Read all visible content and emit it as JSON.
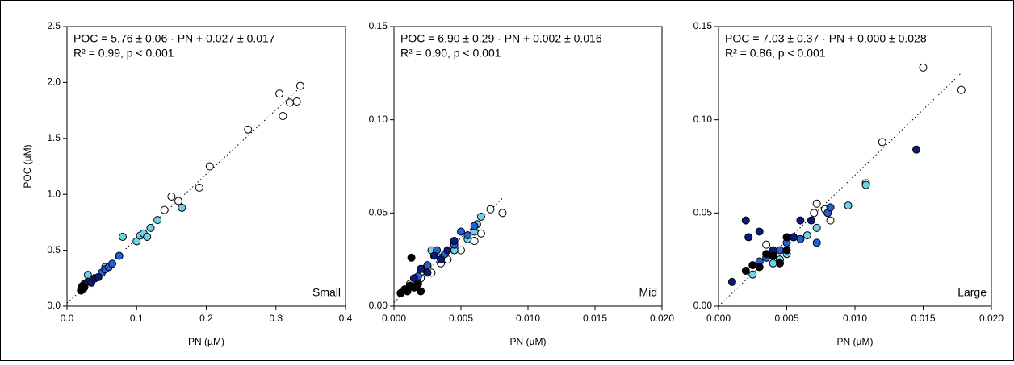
{
  "chart_data": [
    {
      "type": "scatter",
      "xlabel": "PN (µM)",
      "ylabel": "POC (µM)",
      "annotations": {
        "equation": "POC = 5.76 ± 0.06 · PN + 0.027 ± 0.017",
        "r2": "R² = 0.99, p < 0.001",
        "panel": "Small"
      },
      "fit": {
        "slope": 5.76,
        "intercept": 0.027
      },
      "xlim": [
        0,
        0.4
      ],
      "ylim": [
        0,
        2.5
      ],
      "xticks": [
        {
          "value": 0,
          "label": "0.0"
        },
        0.1,
        0.2,
        0.3,
        0.4
      ],
      "yticks": [
        {
          "value": 0,
          "label": "0.0"
        },
        0.5,
        {
          "value": 1,
          "label": "1.0"
        },
        1.5,
        {
          "value": 2,
          "label": "2.0"
        },
        2.5
      ],
      "series": [
        {
          "color": "#000000",
          "x": [
            0.02,
            0.021,
            0.022,
            0.023,
            0.025
          ],
          "values": [
            0.14,
            0.16,
            0.18,
            0.15,
            0.17
          ]
        },
        {
          "color": "#0b1a7a",
          "x": [
            0.025,
            0.03,
            0.035,
            0.04,
            0.045
          ],
          "values": [
            0.2,
            0.22,
            0.21,
            0.25,
            0.26
          ]
        },
        {
          "color": "#2460d8",
          "x": [
            0.04,
            0.05,
            0.055,
            0.06,
            0.065,
            0.075
          ],
          "values": [
            0.25,
            0.3,
            0.33,
            0.35,
            0.38,
            0.45
          ]
        },
        {
          "color": "#6fd3e8",
          "x": [
            0.03,
            0.055,
            0.08,
            0.1,
            0.105,
            0.11,
            0.115,
            0.12,
            0.13,
            0.165
          ],
          "values": [
            0.28,
            0.35,
            0.62,
            0.58,
            0.63,
            0.65,
            0.62,
            0.7,
            0.77,
            0.88
          ]
        },
        {
          "color": "#ffffff",
          "x": [
            0.14,
            0.15,
            0.16,
            0.19,
            0.205,
            0.26,
            0.305,
            0.31,
            0.32,
            0.33,
            0.335
          ],
          "values": [
            0.86,
            0.98,
            0.94,
            1.06,
            1.25,
            1.58,
            1.9,
            1.7,
            1.82,
            1.83,
            1.97
          ]
        }
      ]
    },
    {
      "type": "scatter",
      "xlabel": "PN (µM)",
      "annotations": {
        "equation": "POC = 6.90 ± 0.29 · PN + 0.002 ± 0.016",
        "r2": "R² = 0.90, p < 0.001",
        "panel": "Mid"
      },
      "fit": {
        "slope": 6.9,
        "intercept": 0.002
      },
      "xlim": [
        0,
        0.02
      ],
      "ylim": [
        0,
        0.15
      ],
      "xticks": [
        {
          "value": 0,
          "label": "0.000"
        },
        0.005,
        {
          "value": 0.01,
          "label": "0.010"
        },
        0.015,
        {
          "value": 0.02,
          "label": "0.020"
        }
      ],
      "yticks": [
        {
          "value": 0,
          "label": "0.00"
        },
        0.05,
        {
          "value": 0.1,
          "label": "0.10"
        },
        0.15
      ],
      "series": [
        {
          "color": "#000000",
          "x": [
            0.0005,
            0.0008,
            0.001,
            0.0012,
            0.0015,
            0.0018,
            0.002,
            0.0013
          ],
          "values": [
            0.007,
            0.009,
            0.008,
            0.011,
            0.01,
            0.012,
            0.008,
            0.026
          ]
        },
        {
          "color": "#0b1a7a",
          "x": [
            0.0015,
            0.002,
            0.0025,
            0.003,
            0.0035,
            0.004,
            0.0045
          ],
          "values": [
            0.015,
            0.02,
            0.018,
            0.027,
            0.025,
            0.03,
            0.035
          ]
        },
        {
          "color": "#2460d8",
          "x": [
            0.0018,
            0.0025,
            0.0032,
            0.0038,
            0.0045,
            0.005,
            0.0055,
            0.006
          ],
          "values": [
            0.016,
            0.022,
            0.03,
            0.028,
            0.033,
            0.04,
            0.038,
            0.043
          ]
        },
        {
          "color": "#6fd3e8",
          "x": [
            0.0022,
            0.0028,
            0.0035,
            0.0045,
            0.0055,
            0.006,
            0.0065,
            0.0062
          ],
          "values": [
            0.02,
            0.03,
            0.026,
            0.03,
            0.036,
            0.04,
            0.048,
            0.044
          ]
        },
        {
          "color": "#ffffff",
          "x": [
            0.0012,
            0.002,
            0.0028,
            0.0035,
            0.004,
            0.005,
            0.006,
            0.0065,
            0.0072,
            0.0081
          ],
          "values": [
            0.012,
            0.015,
            0.018,
            0.023,
            0.025,
            0.03,
            0.035,
            0.039,
            0.052,
            0.05
          ]
        }
      ]
    },
    {
      "type": "scatter",
      "xlabel": "PN (µM)",
      "annotations": {
        "equation": "POC = 7.03 ± 0.37 · PN + 0.000 ± 0.028",
        "r2": "R² = 0.86, p < 0.001",
        "panel": "Large"
      },
      "fit": {
        "slope": 7.03,
        "intercept": 0
      },
      "xlim": [
        0,
        0.02
      ],
      "ylim": [
        0,
        0.15
      ],
      "xticks": [
        {
          "value": 0,
          "label": "0.000"
        },
        0.005,
        {
          "value": 0.01,
          "label": "0.010"
        },
        0.015,
        {
          "value": 0.02,
          "label": "0.020"
        }
      ],
      "yticks": [
        {
          "value": 0,
          "label": "0.00"
        },
        0.05,
        {
          "value": 0.1,
          "label": "0.10"
        },
        0.15
      ],
      "series": [
        {
          "color": "#000000",
          "x": [
            0.002,
            0.0025,
            0.003,
            0.0035,
            0.004,
            0.0045,
            0.005,
            0.005
          ],
          "values": [
            0.019,
            0.022,
            0.021,
            0.028,
            0.027,
            0.023,
            0.03,
            0.037
          ]
        },
        {
          "color": "#0b1a7a",
          "x": [
            0.001,
            0.002,
            0.0022,
            0.003,
            0.004,
            0.0055,
            0.006,
            0.0068,
            0.0145
          ],
          "values": [
            0.013,
            0.046,
            0.037,
            0.04,
            0.03,
            0.037,
            0.046,
            0.046,
            0.084
          ]
        },
        {
          "color": "#2460d8",
          "x": [
            0.003,
            0.0035,
            0.0045,
            0.005,
            0.006,
            0.0072,
            0.008,
            0.0082
          ],
          "values": [
            0.024,
            0.026,
            0.03,
            0.034,
            0.036,
            0.034,
            0.05,
            0.053
          ]
        },
        {
          "color": "#6fd3e8",
          "x": [
            0.0025,
            0.004,
            0.0045,
            0.005,
            0.0065,
            0.0072,
            0.0095,
            0.0108
          ],
          "values": [
            0.017,
            0.023,
            0.025,
            0.028,
            0.038,
            0.042,
            0.054,
            0.065
          ]
        },
        {
          "color": "#ffffff",
          "x": [
            0.0035,
            0.004,
            0.0055,
            0.007,
            0.0072,
            0.0078,
            0.0082,
            0.0108,
            0.012,
            0.015,
            0.0178
          ],
          "values": [
            0.033,
            0.028,
            0.037,
            0.05,
            0.055,
            0.052,
            0.046,
            0.066,
            0.088,
            0.128,
            0.116
          ]
        }
      ]
    }
  ]
}
